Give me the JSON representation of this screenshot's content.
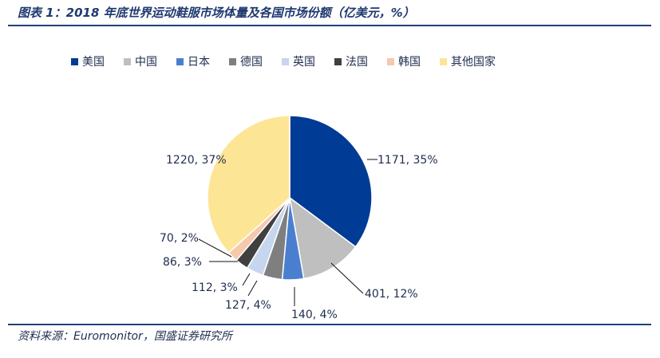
{
  "figure": {
    "title": "图表 1：2018 年底世界运动鞋服市场体量及各国市场份额（亿美元，%）",
    "source": "资料来源：Euromonitor，国盛证券研究所"
  },
  "chart_data": {
    "type": "pie",
    "title": "",
    "unit": "亿美元",
    "legend_position": "top",
    "start_angle": "12 o'clock, clockwise",
    "slices": [
      {
        "name": "美国",
        "value": 1171,
        "percent": "35%",
        "label": "1171, 35%",
        "color": "#003b95"
      },
      {
        "name": "中国",
        "value": 401,
        "percent": "12%",
        "label": "401, 12%",
        "color": "#bfbfbf"
      },
      {
        "name": "日本",
        "value": 140,
        "percent": "4%",
        "label": "140, 4%",
        "color": "#4a7fd0"
      },
      {
        "name": "德国",
        "value": 127,
        "percent": "4%",
        "label": "127, 4%",
        "color": "#7f7f7f"
      },
      {
        "name": "英国",
        "value": 112,
        "percent": "3%",
        "label": "112, 3%",
        "color": "#c6d6ee"
      },
      {
        "name": "法国",
        "value": 86,
        "percent": "3%",
        "label": "86, 3%",
        "color": "#404040"
      },
      {
        "name": "韩国",
        "value": 70,
        "percent": "2%",
        "label": "70, 2%",
        "color": "#f8c8ad"
      },
      {
        "name": "其他国家",
        "value": 1220,
        "percent": "37%",
        "label": "1220, 37%",
        "color": "#fde596"
      }
    ]
  }
}
